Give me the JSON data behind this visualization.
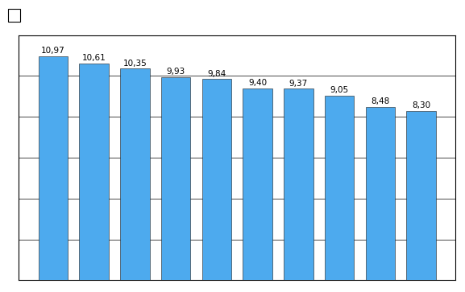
{
  "values": [
    10.97,
    10.61,
    10.35,
    9.93,
    9.84,
    9.4,
    9.37,
    9.05,
    8.48,
    8.3
  ],
  "bar_color": "#4DAAEE",
  "bar_edge_color": "#1a1a1a",
  "bar_edge_width": 0.4,
  "ylim": [
    0,
    12
  ],
  "yticks": [
    0,
    2,
    4,
    6,
    8,
    10,
    12
  ],
  "grid_color": "#000000",
  "grid_linewidth": 0.5,
  "background_color": "#ffffff",
  "plot_bg_color": "#ffffff",
  "label_fontsize": 7.5,
  "label_color": "#000000",
  "outer_border_color": "#000000",
  "bar_width": 0.72
}
